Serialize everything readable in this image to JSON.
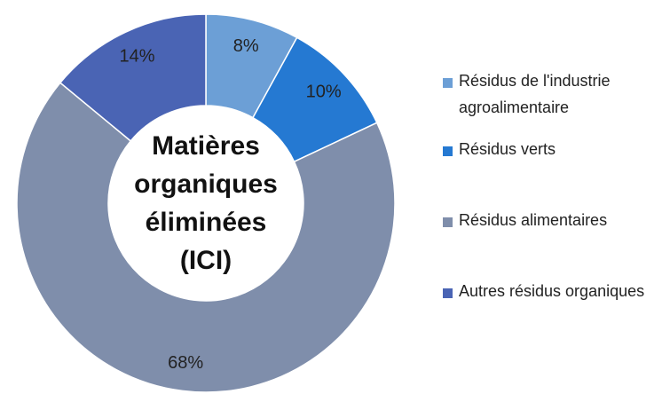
{
  "chart_data": {
    "type": "donut",
    "title": "Matières organiques éliminées (ICI)",
    "categories": [
      "Résidus de l'industrie agroalimentaire",
      "Résidus verts",
      "Résidus alimentaires",
      "Autres résidus organiques"
    ],
    "values": [
      8,
      10,
      68,
      14
    ],
    "value_labels": [
      "8%",
      "10%",
      "68%",
      "14%"
    ],
    "colors": [
      "#6c9fd6",
      "#2579d2",
      "#7f8eab",
      "#4a64b4"
    ],
    "legend": "right"
  }
}
